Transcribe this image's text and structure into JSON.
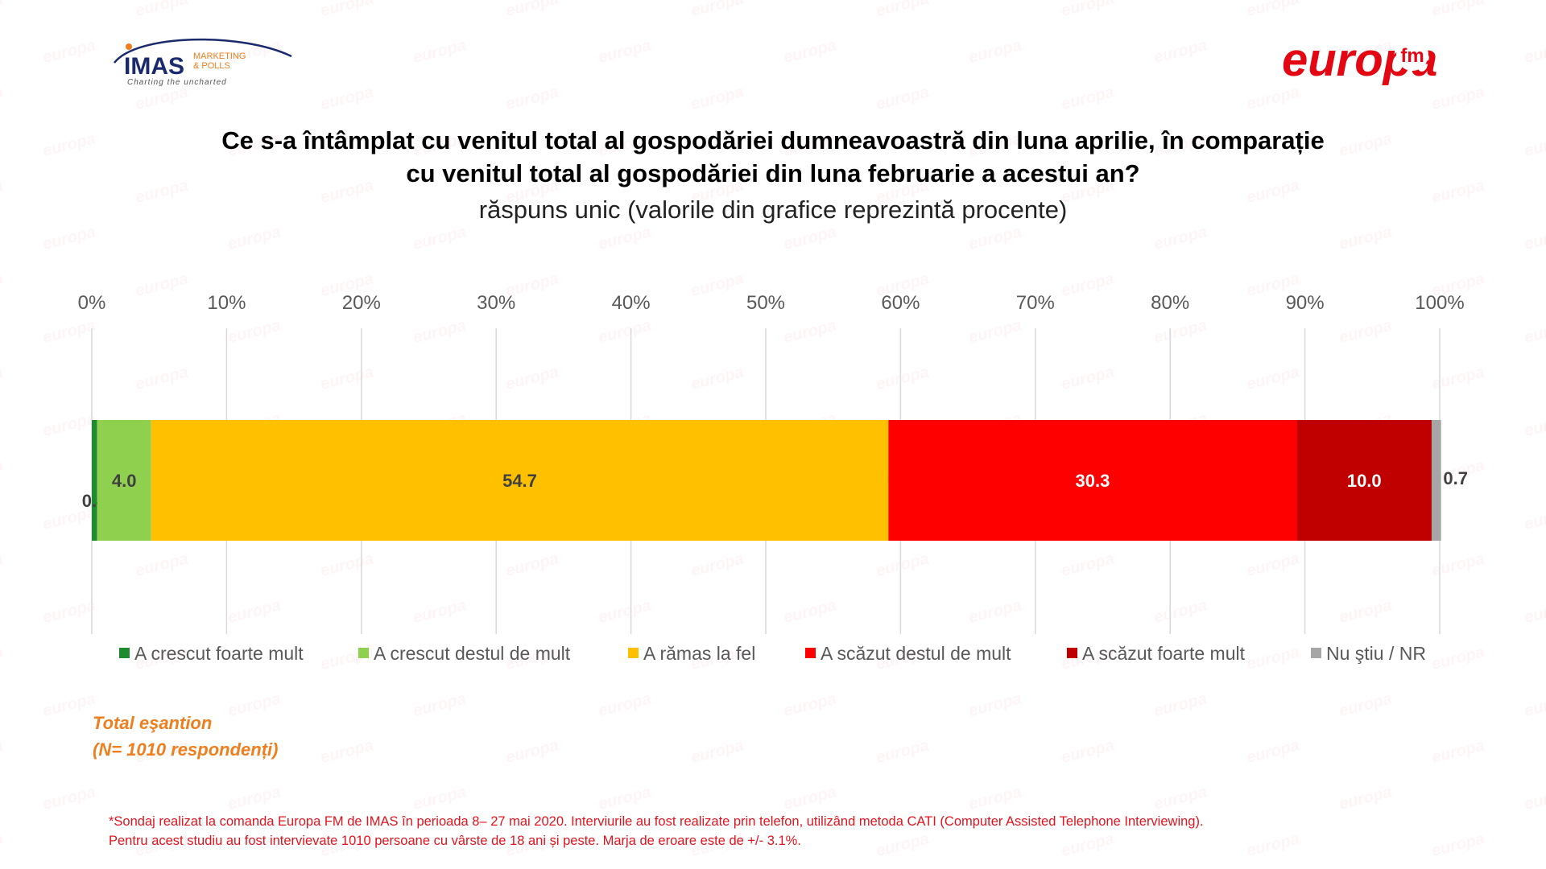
{
  "header": {
    "imas_logo": {
      "name": "IMAS",
      "line1": "MARKETING",
      "line2": "& POLLS",
      "tagline": "Charting the uncharted"
    },
    "europa_logo": {
      "name": "europa",
      "suffix": "fm",
      "color": "#e30613"
    },
    "watermark_text": "europa"
  },
  "title_line1": "Ce s-a întâmplat cu venitul total al gospodăriei dumneavoastră din luna aprilie, în comparație",
  "title_line2": "cu venitul total al gospodăriei din luna februarie a acestui an?",
  "subtitle": "răspuns unic (valorile din grafice reprezintă procente)",
  "chart_data": {
    "type": "bar",
    "orientation": "horizontal",
    "stacked": true,
    "xlim": [
      0,
      100
    ],
    "ticks": [
      "0%",
      "10%",
      "20%",
      "30%",
      "40%",
      "50%",
      "60%",
      "70%",
      "80%",
      "90%",
      "100%"
    ],
    "grid": true,
    "legend_position": "bottom",
    "series": [
      {
        "name": "A crescut foarte mult",
        "value": 0.4,
        "label": "0.4",
        "color": "#1e8c2e"
      },
      {
        "name": "A crescut destul de mult",
        "value": 4.0,
        "label": "4.0",
        "color": "#8fd14f"
      },
      {
        "name": "A rămas la fel",
        "value": 54.7,
        "label": "54.7",
        "color": "#ffc000"
      },
      {
        "name": "A scăzut destul de mult",
        "value": 30.3,
        "label": "30.3",
        "color": "#ff0000"
      },
      {
        "name": "A scăzut foarte mult",
        "value": 10.0,
        "label": "10.0",
        "color": "#c00000"
      },
      {
        "name": "Nu ştiu / NR",
        "value": 0.7,
        "label": "0.7",
        "color": "#a6a6a6"
      }
    ]
  },
  "sample": {
    "line1": "Total eşantion",
    "line2": "(N= 1010 respondenți)"
  },
  "footnote": {
    "line1": "*Sondaj realizat la comanda Europa FM de IMAS în perioada  8– 27 mai 2020. Interviurile au fost realizate prin telefon, utilizând metoda CATI (Computer Assisted Telephone Interviewing).",
    "line2": "Pentru acest studiu au fost intervievate 1010 persoane cu vârste de 18 ani și peste. Marja de eroare este de +/- 3.1%."
  }
}
